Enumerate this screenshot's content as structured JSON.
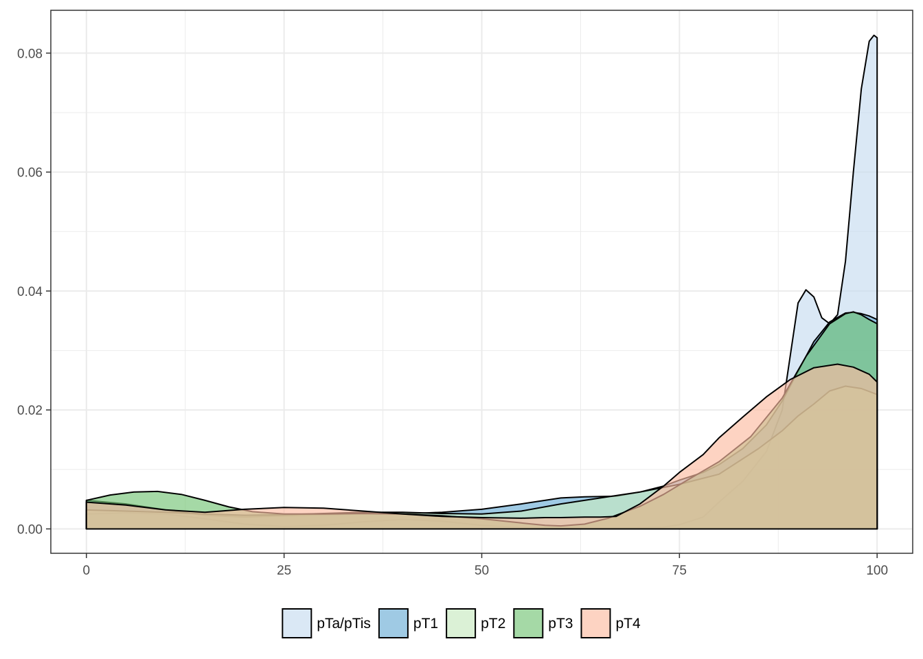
{
  "chart_data": {
    "type": "area",
    "subtype": "density",
    "title": "",
    "xlabel": "",
    "ylabel": "",
    "xlim": [
      -4.5,
      104.5
    ],
    "ylim": [
      -0.0041,
      0.0872
    ],
    "x_ticks": [
      0,
      25,
      50,
      75,
      100
    ],
    "x_tick_labels": [
      "0",
      "25",
      "50",
      "75",
      "100"
    ],
    "y_ticks": [
      0.0,
      0.02,
      0.04,
      0.06,
      0.08
    ],
    "y_tick_labels": [
      "0.00",
      "0.02",
      "0.04",
      "0.06",
      "0.08"
    ],
    "grid": true,
    "legend_position": "bottom",
    "fill_opacity": 0.65,
    "series": [
      {
        "name": "pTa/pTis",
        "color": "#c6dbef",
        "points": [
          [
            0,
            0.0025
          ],
          [
            5,
            0.0027
          ],
          [
            10,
            0.0025
          ],
          [
            15,
            0.0017
          ],
          [
            20,
            0.0008
          ],
          [
            25,
            0.0004
          ],
          [
            30,
            0.0006
          ],
          [
            35,
            0.0012
          ],
          [
            40,
            0.0016
          ],
          [
            45,
            0.0013
          ],
          [
            50,
            0.0006
          ],
          [
            55,
            0.0002
          ],
          [
            60,
            0.0001
          ],
          [
            65,
            0.0001
          ],
          [
            70,
            0.0002
          ],
          [
            73,
            0.0003
          ],
          [
            75,
            0.0007
          ],
          [
            78,
            0.002
          ],
          [
            80,
            0.0045
          ],
          [
            83,
            0.008
          ],
          [
            86,
            0.013
          ],
          [
            88,
            0.02
          ],
          [
            90,
            0.038
          ],
          [
            91,
            0.0402
          ],
          [
            92,
            0.039
          ],
          [
            93,
            0.0355
          ],
          [
            94,
            0.0345
          ],
          [
            95,
            0.036
          ],
          [
            96,
            0.045
          ],
          [
            97,
            0.06
          ],
          [
            98,
            0.074
          ],
          [
            99,
            0.082
          ],
          [
            99.6,
            0.083
          ],
          [
            100,
            0.0826
          ]
        ]
      },
      {
        "name": "pT1",
        "color": "#6baed6",
        "points": [
          [
            0,
            0.0048
          ],
          [
            5,
            0.0042
          ],
          [
            10,
            0.0032
          ],
          [
            15,
            0.0023
          ],
          [
            20,
            0.002
          ],
          [
            25,
            0.0022
          ],
          [
            30,
            0.0024
          ],
          [
            35,
            0.0025
          ],
          [
            40,
            0.0025
          ],
          [
            45,
            0.0028
          ],
          [
            50,
            0.0033
          ],
          [
            55,
            0.0042
          ],
          [
            60,
            0.0052
          ],
          [
            63,
            0.0054
          ],
          [
            67,
            0.0055
          ],
          [
            70,
            0.0062
          ],
          [
            73,
            0.0072
          ],
          [
            75,
            0.0082
          ],
          [
            78,
            0.0095
          ],
          [
            80,
            0.0108
          ],
          [
            83,
            0.0135
          ],
          [
            86,
            0.0175
          ],
          [
            88,
            0.0215
          ],
          [
            90,
            0.0265
          ],
          [
            92,
            0.0315
          ],
          [
            94,
            0.0348
          ],
          [
            96,
            0.0363
          ],
          [
            97,
            0.0364
          ],
          [
            98,
            0.0362
          ],
          [
            99,
            0.0358
          ],
          [
            100,
            0.0352
          ]
        ]
      },
      {
        "name": "pT2",
        "color": "#c7e9c0",
        "points": [
          [
            0,
            0.0032
          ],
          [
            5,
            0.003
          ],
          [
            10,
            0.0028
          ],
          [
            15,
            0.0025
          ],
          [
            20,
            0.0023
          ],
          [
            25,
            0.0024
          ],
          [
            30,
            0.0026
          ],
          [
            35,
            0.0028
          ],
          [
            40,
            0.0028
          ],
          [
            45,
            0.0026
          ],
          [
            50,
            0.0025
          ],
          [
            55,
            0.003
          ],
          [
            60,
            0.0042
          ],
          [
            65,
            0.0052
          ],
          [
            70,
            0.0062
          ],
          [
            75,
            0.0075
          ],
          [
            80,
            0.0092
          ],
          [
            85,
            0.0135
          ],
          [
            88,
            0.0165
          ],
          [
            90,
            0.019
          ],
          [
            92,
            0.021
          ],
          [
            94,
            0.0232
          ],
          [
            96,
            0.024
          ],
          [
            98,
            0.0236
          ],
          [
            100,
            0.0226
          ]
        ]
      },
      {
        "name": "pT3",
        "color": "#74c476",
        "points": [
          [
            0,
            0.0048
          ],
          [
            3,
            0.0057
          ],
          [
            6,
            0.0062
          ],
          [
            9,
            0.0063
          ],
          [
            12,
            0.0058
          ],
          [
            15,
            0.0048
          ],
          [
            18,
            0.0037
          ],
          [
            21,
            0.0029
          ],
          [
            25,
            0.0025
          ],
          [
            30,
            0.0025
          ],
          [
            35,
            0.0026
          ],
          [
            40,
            0.0025
          ],
          [
            45,
            0.0022
          ],
          [
            50,
            0.0017
          ],
          [
            55,
            0.001
          ],
          [
            58,
            0.0006
          ],
          [
            60,
            0.0005
          ],
          [
            63,
            0.0008
          ],
          [
            66,
            0.0018
          ],
          [
            70,
            0.0038
          ],
          [
            73,
            0.0058
          ],
          [
            76,
            0.0082
          ],
          [
            80,
            0.0113
          ],
          [
            84,
            0.0155
          ],
          [
            88,
            0.022
          ],
          [
            91,
            0.029
          ],
          [
            94,
            0.0345
          ],
          [
            96,
            0.0362
          ],
          [
            97,
            0.0365
          ],
          [
            98,
            0.036
          ],
          [
            99,
            0.0352
          ],
          [
            100,
            0.0345
          ]
        ]
      },
      {
        "name": "pT4",
        "color": "#fcbba1",
        "points": [
          [
            0,
            0.0045
          ],
          [
            5,
            0.004
          ],
          [
            10,
            0.0032
          ],
          [
            15,
            0.0028
          ],
          [
            20,
            0.0033
          ],
          [
            25,
            0.0036
          ],
          [
            30,
            0.0035
          ],
          [
            35,
            0.003
          ],
          [
            40,
            0.0025
          ],
          [
            45,
            0.0021
          ],
          [
            50,
            0.0019
          ],
          [
            55,
            0.0018
          ],
          [
            58,
            0.0019
          ],
          [
            60,
            0.0019
          ],
          [
            63,
            0.002
          ],
          [
            65,
            0.002
          ],
          [
            67,
            0.0021
          ],
          [
            70,
            0.0042
          ],
          [
            73,
            0.0072
          ],
          [
            75,
            0.0095
          ],
          [
            78,
            0.0125
          ],
          [
            80,
            0.0153
          ],
          [
            83,
            0.0188
          ],
          [
            86,
            0.0222
          ],
          [
            89,
            0.0251
          ],
          [
            92,
            0.0271
          ],
          [
            95,
            0.0277
          ],
          [
            97,
            0.0272
          ],
          [
            99,
            0.026
          ],
          [
            100,
            0.0247
          ]
        ]
      }
    ]
  }
}
